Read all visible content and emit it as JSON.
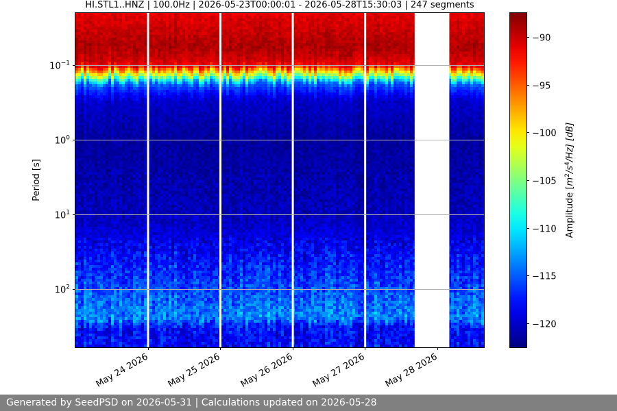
{
  "chart_data": {
    "type": "heatmap",
    "title": "HI.STL1..HNZ | 100.0Hz | 2026-05-23T00:00:01 - 2026-05-28T15:30:03 | 247 segments",
    "ylabel": "Period [s]",
    "yscale": "log",
    "yaxis_inverted": true,
    "ylim": [
      0.02,
      600
    ],
    "xlim": [
      "2026-05-23T00:00:01",
      "2026-05-28T15:30:03"
    ],
    "y_ticks": [
      {
        "value": 0.1,
        "base": "10",
        "exp": "−1"
      },
      {
        "value": 1,
        "base": "10",
        "exp": "0"
      },
      {
        "value": 10,
        "base": "10",
        "exp": "1"
      },
      {
        "value": 100,
        "base": "10",
        "exp": "2"
      }
    ],
    "x_ticks": [
      {
        "date": "2026-05-24",
        "label": "May 24 2026"
      },
      {
        "date": "2026-05-25",
        "label": "May 25 2026"
      },
      {
        "date": "2026-05-26",
        "label": "May 26 2026"
      },
      {
        "date": "2026-05-27",
        "label": "May 27 2026"
      },
      {
        "date": "2026-05-28",
        "label": "May 28 2026"
      }
    ],
    "data_gaps": [
      {
        "start": "2026-05-23T23:45",
        "end": "2026-05-24T00:05"
      },
      {
        "start": "2026-05-24T23:45",
        "end": "2026-05-25T00:05"
      },
      {
        "start": "2026-05-25T23:45",
        "end": "2026-05-26T00:05"
      },
      {
        "start": "2026-05-26T23:45",
        "end": "2026-05-27T00:05"
      },
      {
        "start": "2026-05-27T16:30",
        "end": "2026-05-28T04:00"
      }
    ],
    "amplitude_profile_db": [
      {
        "period_s": 0.02,
        "amplitude_db": -91
      },
      {
        "period_s": 0.06,
        "amplitude_db": -89
      },
      {
        "period_s": 0.1,
        "amplitude_db": -91
      },
      {
        "period_s": 0.14,
        "amplitude_db": -104
      },
      {
        "period_s": 0.18,
        "amplitude_db": -115
      },
      {
        "period_s": 0.3,
        "amplitude_db": -120
      },
      {
        "period_s": 1,
        "amplitude_db": -121.5
      },
      {
        "period_s": 10,
        "amplitude_db": -120.5
      },
      {
        "period_s": 30,
        "amplitude_db": -118.5
      },
      {
        "period_s": 100,
        "amplitude_db": -115.5
      },
      {
        "period_s": 250,
        "amplitude_db": -113.5
      },
      {
        "period_s": 330,
        "amplitude_db": -118
      },
      {
        "period_s": 600,
        "amplitude_db": -118
      }
    ],
    "colorbar": {
      "label_prefix": "Amplitude [",
      "label_m": "m",
      "label_m_exp": "2",
      "label_mid": "/s",
      "label_s_exp": "4",
      "label_suffix": "/Hz] [dB]",
      "range": [
        -122.5,
        -87.5
      ],
      "ticks": [
        -90,
        -95,
        -100,
        -105,
        -110,
        -115,
        -120
      ],
      "tick_labels": [
        "−90",
        "−95",
        "−100",
        "−105",
        "−110",
        "−115",
        "−120"
      ],
      "colormap": "jet"
    },
    "grid": true
  },
  "footer": {
    "text": "Generated by SeedPSD on 2026-05-31 | Calculations updated on 2026-05-28"
  }
}
